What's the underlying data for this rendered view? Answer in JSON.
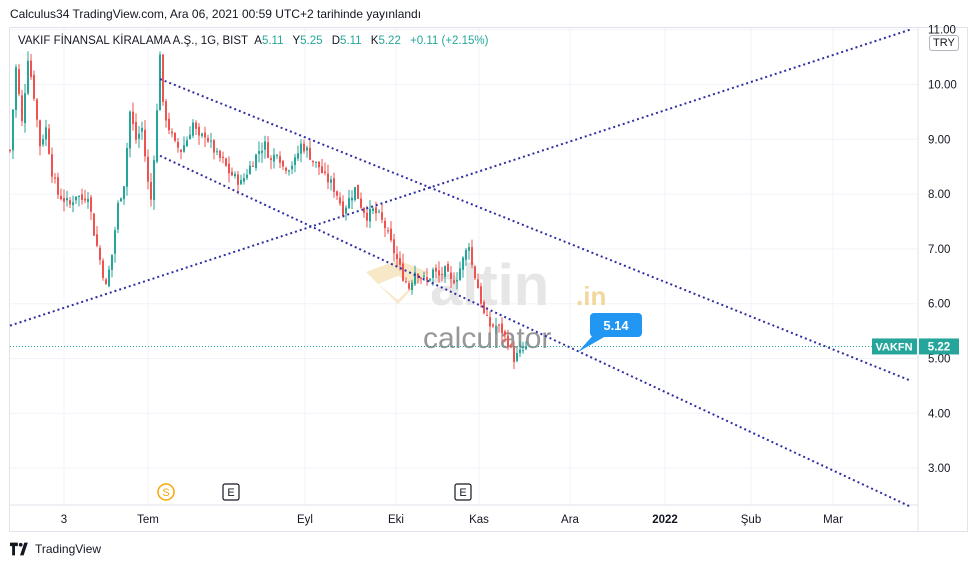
{
  "header": {
    "publisher": "Calculus34 TradingView.com",
    "separator": ",",
    "published": "Ara 06, 2021 00:59 UTC+2 tarihinde yayınlandı"
  },
  "legend": {
    "symbol": "VAKIF FİNANSAL KİRALAMA A.Ş., 1G, BIST",
    "open_label": "A",
    "open": "5.11",
    "high_label": "Y",
    "high": "5.25",
    "low_label": "D",
    "low": "5.11",
    "close_label": "K",
    "close": "5.22",
    "change": "+0.11 (+2.15%)"
  },
  "currency": "TRY",
  "watermark": {
    "brand": "altin",
    "brand_suffix": ".in",
    "sub": "calculator"
  },
  "callout": "5.14",
  "price_tag": {
    "symbol": "VAKFN",
    "value": "5.22"
  },
  "events": [
    {
      "label": "S",
      "x_label": "Tem-",
      "kind": "split"
    },
    {
      "label": "E",
      "kind": "earnings"
    },
    {
      "label": "E",
      "kind": "earnings"
    }
  ],
  "footer": {
    "brand": "TradingView"
  },
  "colors": {
    "up": "#26a69a",
    "down": "#ef5350",
    "trendline": "#2f2fa2",
    "callout": "#2196f3",
    "tag": "#26a69a"
  },
  "chart_data": {
    "type": "candlestick",
    "y_ticks": [
      "11.00",
      "10.00",
      "9.00",
      "8.00",
      "7.00",
      "6.00",
      "5.00",
      "4.00",
      "3.00"
    ],
    "y_tick_values": [
      11,
      10,
      9,
      8,
      7,
      6,
      5,
      4,
      3
    ],
    "ylim": [
      2.3,
      11.0
    ],
    "x_ticks": [
      "3",
      "Tem",
      "Eyl",
      "Eki",
      "Kas",
      "Ara",
      "2022",
      "Şub",
      "Mar"
    ],
    "last_price": 5.22,
    "close_path": [
      [
        0,
        8.8
      ],
      [
        2,
        10.3
      ],
      [
        4,
        9.3
      ],
      [
        6,
        10.5
      ],
      [
        8,
        9.8
      ],
      [
        10,
        8.9
      ],
      [
        12,
        9.2
      ],
      [
        14,
        8.4
      ],
      [
        16,
        8.0
      ],
      [
        18,
        7.9
      ],
      [
        20,
        7.8
      ],
      [
        22,
        8.0
      ],
      [
        24,
        7.9
      ],
      [
        26,
        8.0
      ],
      [
        28,
        7.3
      ],
      [
        30,
        6.8
      ],
      [
        32,
        6.3
      ],
      [
        34,
        6.9
      ],
      [
        36,
        7.8
      ],
      [
        38,
        8.2
      ],
      [
        40,
        9.5
      ],
      [
        42,
        9.0
      ],
      [
        44,
        9.2
      ],
      [
        46,
        8.2
      ],
      [
        47,
        7.9
      ],
      [
        49,
        9.5
      ],
      [
        50,
        10.6
      ],
      [
        51,
        9.6
      ],
      [
        53,
        9.2
      ],
      [
        55,
        8.9
      ],
      [
        57,
        8.8
      ],
      [
        59,
        9.0
      ],
      [
        61,
        9.3
      ],
      [
        63,
        9.0
      ],
      [
        65,
        9.1
      ],
      [
        67,
        8.9
      ],
      [
        69,
        8.7
      ],
      [
        71,
        8.6
      ],
      [
        73,
        8.4
      ],
      [
        75,
        8.3
      ],
      [
        77,
        8.2
      ],
      [
        79,
        8.4
      ],
      [
        81,
        8.6
      ],
      [
        83,
        8.8
      ],
      [
        85,
        8.9
      ],
      [
        87,
        8.6
      ],
      [
        89,
        8.8
      ],
      [
        91,
        8.5
      ],
      [
        93,
        8.5
      ],
      [
        95,
        8.6
      ],
      [
        97,
        8.9
      ],
      [
        99,
        8.8
      ],
      [
        101,
        8.6
      ],
      [
        103,
        8.5
      ],
      [
        105,
        8.3
      ],
      [
        107,
        8.2
      ],
      [
        109,
        8.0
      ],
      [
        111,
        7.7
      ],
      [
        113,
        7.9
      ],
      [
        115,
        8.1
      ],
      [
        117,
        7.8
      ],
      [
        119,
        7.6
      ],
      [
        121,
        7.7
      ],
      [
        123,
        7.6
      ],
      [
        125,
        7.4
      ],
      [
        127,
        7.1
      ],
      [
        129,
        6.8
      ],
      [
        131,
        6.5
      ],
      [
        133,
        6.3
      ],
      [
        135,
        6.6
      ],
      [
        137,
        6.5
      ],
      [
        139,
        6.4
      ],
      [
        141,
        6.6
      ],
      [
        143,
        6.5
      ],
      [
        145,
        6.6
      ],
      [
        147,
        6.4
      ],
      [
        149,
        6.5
      ],
      [
        151,
        6.8
      ],
      [
        153,
        7.1
      ],
      [
        154,
        6.7
      ],
      [
        156,
        6.3
      ],
      [
        158,
        5.8
      ],
      [
        160,
        5.6
      ],
      [
        162,
        5.6
      ],
      [
        164,
        5.5
      ],
      [
        166,
        5.3
      ],
      [
        168,
        5.0
      ],
      [
        169,
        5.05
      ],
      [
        170,
        5.1
      ],
      [
        171,
        5.14
      ],
      [
        172,
        5.22
      ]
    ],
    "trendlines": [
      {
        "name": "upper-channel",
        "points": [
          [
            50,
            10.1
          ],
          [
            300,
            4.6
          ]
        ]
      },
      {
        "name": "lower-channel",
        "points": [
          [
            50,
            8.7
          ],
          [
            300,
            2.3
          ]
        ]
      },
      {
        "name": "rising-support",
        "points": [
          [
            0,
            5.6
          ],
          [
            300,
            11.0
          ]
        ]
      }
    ]
  }
}
